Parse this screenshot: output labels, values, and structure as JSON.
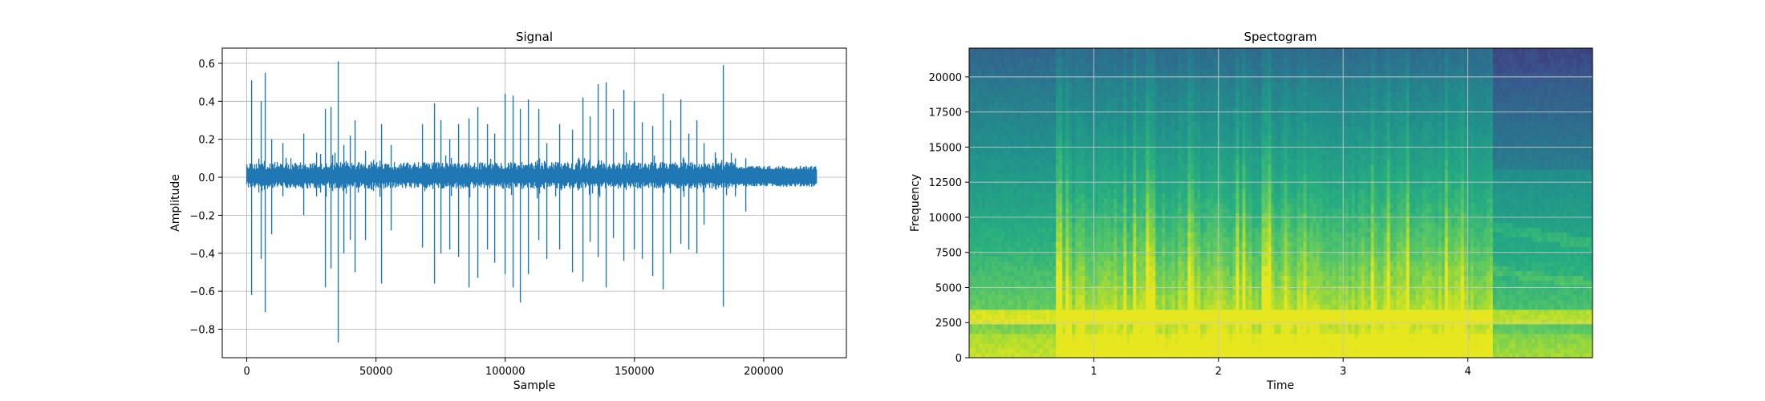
{
  "chart_data": [
    {
      "type": "line",
      "title": "Signal",
      "xlabel": "Sample",
      "ylabel": "Amplitude",
      "xlim": [
        -9500,
        232000
      ],
      "ylim": [
        -0.95,
        0.68
      ],
      "xticks": [
        0,
        50000,
        100000,
        150000,
        200000
      ],
      "xtick_labels": [
        "0",
        "50000",
        "100000",
        "150000",
        "200000"
      ],
      "yticks": [
        -0.8,
        -0.6,
        -0.4,
        -0.2,
        0.0,
        0.2,
        0.4,
        0.6
      ],
      "ytick_labels": [
        "−0.8",
        "−0.6",
        "−0.4",
        "−0.2",
        "0.0",
        "0.2",
        "0.4",
        "0.6"
      ],
      "grid": true,
      "line_color": "#1f77b4",
      "sample_count": 220500,
      "noise_floor": {
        "min": -0.06,
        "max": 0.08
      },
      "tail": {
        "start": 190000,
        "end": 220500,
        "min": -0.05,
        "max": 0.06
      },
      "spikes": [
        [
          2000,
          0.51,
          -0.62
        ],
        [
          5500,
          0.4,
          -0.43
        ],
        [
          7000,
          0.55,
          -0.71
        ],
        [
          9500,
          0.2,
          -0.3
        ],
        [
          14000,
          0.18,
          -0.1
        ],
        [
          17000,
          0.1,
          -0.05
        ],
        [
          22000,
          0.23,
          -0.2
        ],
        [
          27000,
          0.13,
          -0.1
        ],
        [
          30500,
          0.36,
          -0.58
        ],
        [
          32500,
          0.37,
          -0.48
        ],
        [
          35500,
          0.61,
          -0.87
        ],
        [
          37500,
          0.17,
          -0.4
        ],
        [
          40000,
          0.22,
          -0.33
        ],
        [
          42000,
          0.3,
          -0.5
        ],
        [
          46000,
          0.14,
          -0.33
        ],
        [
          52000,
          0.28,
          -0.56
        ],
        [
          56000,
          0.17,
          -0.28
        ],
        [
          68000,
          0.28,
          -0.37
        ],
        [
          72500,
          0.39,
          -0.56
        ],
        [
          75000,
          0.3,
          -0.4
        ],
        [
          78500,
          0.2,
          -0.38
        ],
        [
          82000,
          0.28,
          -0.42
        ],
        [
          86000,
          0.31,
          -0.58
        ],
        [
          89500,
          0.37,
          -0.53
        ],
        [
          93000,
          0.28,
          -0.38
        ],
        [
          96000,
          0.23,
          -0.45
        ],
        [
          100000,
          0.44,
          -0.51
        ],
        [
          103000,
          0.43,
          -0.58
        ],
        [
          106000,
          0.36,
          -0.66
        ],
        [
          109000,
          0.41,
          -0.51
        ],
        [
          113000,
          0.36,
          -0.33
        ],
        [
          116000,
          0.18,
          -0.43
        ],
        [
          121000,
          0.28,
          -0.38
        ],
        [
          126000,
          0.25,
          -0.5
        ],
        [
          130000,
          0.42,
          -0.55
        ],
        [
          133000,
          0.32,
          -0.34
        ],
        [
          136000,
          0.49,
          -0.42
        ],
        [
          139000,
          0.5,
          -0.58
        ],
        [
          142000,
          0.36,
          -0.32
        ],
        [
          146000,
          0.46,
          -0.44
        ],
        [
          150000,
          0.4,
          -0.38
        ],
        [
          153000,
          0.29,
          -0.43
        ],
        [
          157000,
          0.27,
          -0.52
        ],
        [
          161000,
          0.44,
          -0.59
        ],
        [
          164000,
          0.3,
          -0.4
        ],
        [
          168000,
          0.41,
          -0.35
        ],
        [
          171000,
          0.23,
          -0.38
        ],
        [
          174000,
          0.3,
          -0.4
        ],
        [
          177000,
          0.18,
          -0.25
        ],
        [
          184500,
          0.59,
          -0.68
        ],
        [
          189000,
          0.1,
          -0.1
        ],
        [
          193000,
          0.1,
          -0.18
        ]
      ]
    },
    {
      "type": "heatmap",
      "title": "Spectogram",
      "xlabel": "Time",
      "ylabel": "Frequency",
      "xlim": [
        0,
        5.0
      ],
      "ylim": [
        0,
        22050
      ],
      "xticks": [
        1,
        2,
        3,
        4
      ],
      "xtick_labels": [
        "1",
        "2",
        "3",
        "4"
      ],
      "yticks": [
        0,
        2500,
        5000,
        7500,
        10000,
        12500,
        15000,
        17500,
        20000
      ],
      "ytick_labels": [
        "0",
        "2500",
        "5000",
        "7500",
        "10000",
        "12500",
        "15000",
        "17500",
        "20000"
      ],
      "grid": true,
      "colormap": "viridis",
      "dominant_band_hz": 3000,
      "quiet_regions": [
        [
          0.0,
          0.05
        ],
        [
          4.2,
          5.0
        ]
      ],
      "active_region": [
        0.7,
        4.2
      ]
    }
  ]
}
